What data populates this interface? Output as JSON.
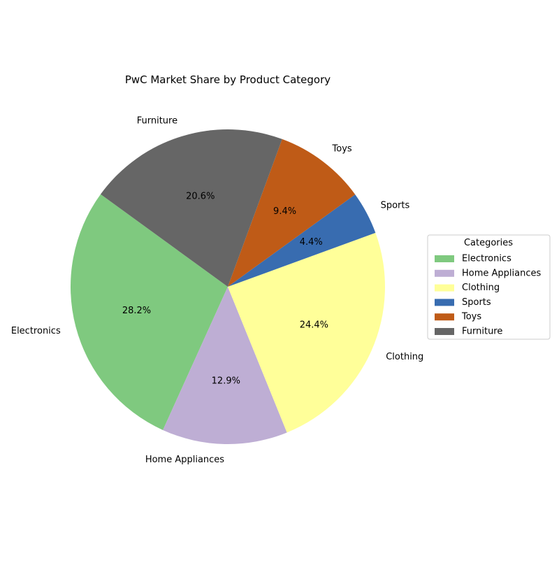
{
  "chart_data": {
    "type": "pie",
    "title": "PwC Market Share by Product Category",
    "categories": [
      "Electronics",
      "Home Appliances",
      "Clothing",
      "Sports",
      "Toys",
      "Furniture"
    ],
    "values": [
      28.2,
      12.9,
      24.4,
      4.4,
      9.4,
      20.6
    ],
    "value_labels": [
      "28.2%",
      "12.9%",
      "24.4%",
      "4.4%",
      "9.4%",
      "20.6%"
    ],
    "colors": [
      "#7fc97f",
      "#beaed4",
      "#ffff99",
      "#386cb0",
      "#bf5b17",
      "#666666"
    ],
    "start_angle_deg": 144,
    "direction": "counterclockwise",
    "legend": {
      "title": "Categories",
      "placement": "center-right"
    }
  }
}
